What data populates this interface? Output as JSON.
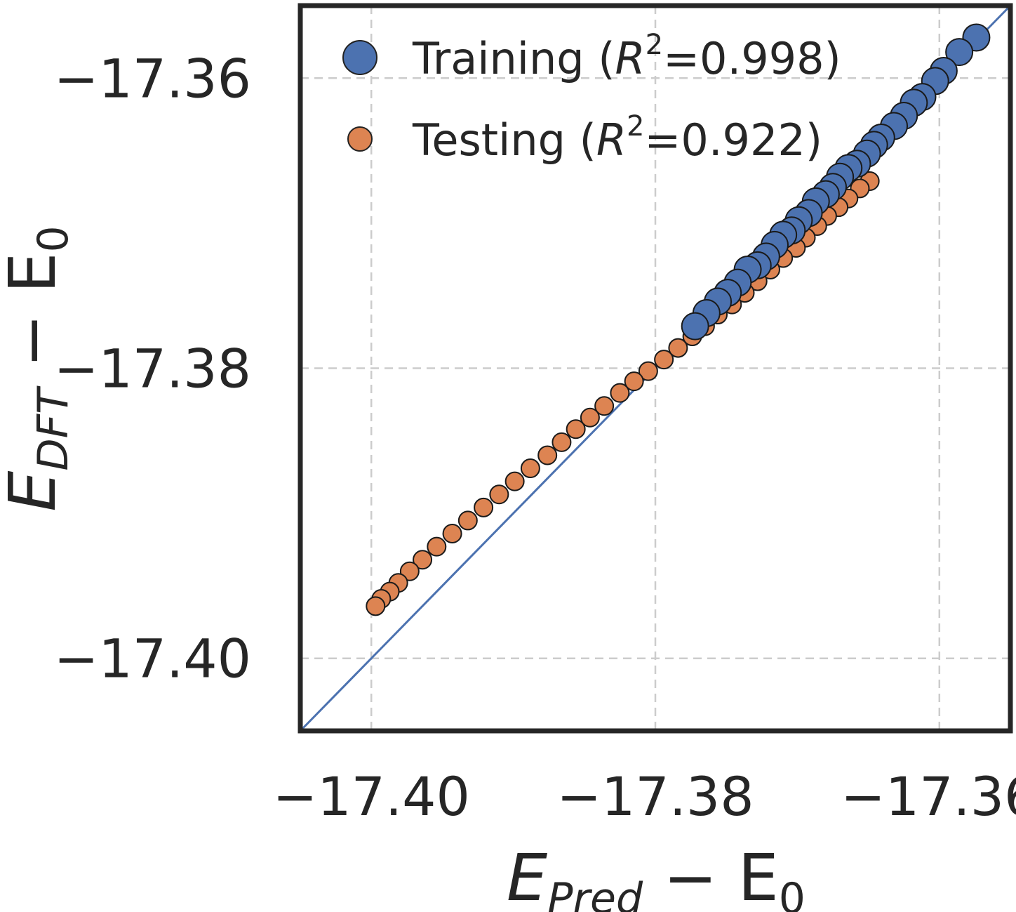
{
  "chart_data": {
    "type": "scatter",
    "title": "",
    "xlabel": {
      "main": "E",
      "sub": "Pred",
      "rest": " − E",
      "sub2": "0"
    },
    "ylabel": {
      "main": "E",
      "sub": "DFT",
      "rest": " − E",
      "sub2": "0"
    },
    "xlim": [
      -17.405,
      -17.355
    ],
    "ylim": [
      -17.405,
      -17.355
    ],
    "x_ticks": [
      -17.4,
      -17.38,
      -17.36
    ],
    "y_ticks": [
      -17.4,
      -17.38,
      -17.36
    ],
    "x_tick_labels": [
      "−17.40",
      "−17.38",
      "−17.36"
    ],
    "y_tick_labels": [
      "−17.40",
      "−17.38",
      "−17.36"
    ],
    "grid": true,
    "legend_position": "top-left",
    "reference_line": "y = x",
    "colors": {
      "training": "#4c72b0",
      "testing": "#dd8452",
      "reference": "#4c72b0",
      "frame": "#262626",
      "grid": "#cccccc"
    },
    "series": [
      {
        "name": "Training",
        "legend_label": "Training (",
        "r2_symbol": "R",
        "r2_exp": "2",
        "r2_value": "=0.998)",
        "x": [
          -17.3574,
          -17.3586,
          -17.3597,
          -17.3603,
          -17.3612,
          -17.3618,
          -17.3625,
          -17.3632,
          -17.3641,
          -17.3646,
          -17.3651,
          -17.3658,
          -17.3664,
          -17.367,
          -17.3675,
          -17.368,
          -17.3687,
          -17.3692,
          -17.3699,
          -17.3704,
          -17.371,
          -17.3716,
          -17.3722,
          -17.3728,
          -17.3735,
          -17.3742,
          -17.3749,
          -17.3756,
          -17.3764,
          -17.3772
        ],
        "y": [
          -17.3572,
          -17.3582,
          -17.3595,
          -17.3602,
          -17.3613,
          -17.3617,
          -17.3626,
          -17.3633,
          -17.3641,
          -17.3646,
          -17.3652,
          -17.3659,
          -17.3662,
          -17.3668,
          -17.3675,
          -17.368,
          -17.3685,
          -17.3693,
          -17.3698,
          -17.3705,
          -17.3708,
          -17.3715,
          -17.3723,
          -17.3729,
          -17.3732,
          -17.3741,
          -17.3748,
          -17.3754,
          -17.3762,
          -17.3771
        ]
      },
      {
        "name": "Testing",
        "legend_label": "Testing (",
        "r2_symbol": "R",
        "r2_exp": "2",
        "r2_value": "=0.922)",
        "x": [
          -17.3649,
          -17.3656,
          -17.3664,
          -17.3671,
          -17.3679,
          -17.3686,
          -17.3694,
          -17.3701,
          -17.371,
          -17.3719,
          -17.3728,
          -17.3737,
          -17.3746,
          -17.3756,
          -17.3765,
          -17.3774,
          -17.3784,
          -17.3794,
          -17.3805,
          -17.3815,
          -17.3825,
          -17.3836,
          -17.3846,
          -17.3856,
          -17.3866,
          -17.3876,
          -17.3888,
          -17.3899,
          -17.391,
          -17.3921,
          -17.3932,
          -17.3943,
          -17.3954,
          -17.3964,
          -17.3973,
          -17.3981,
          -17.3987,
          -17.3993,
          -17.3997
        ],
        "y": [
          -17.3671,
          -17.3676,
          -17.3683,
          -17.3689,
          -17.3695,
          -17.3702,
          -17.371,
          -17.3717,
          -17.3724,
          -17.3732,
          -17.374,
          -17.3748,
          -17.3756,
          -17.3763,
          -17.3771,
          -17.3778,
          -17.3786,
          -17.3794,
          -17.3802,
          -17.3809,
          -17.3817,
          -17.3826,
          -17.3834,
          -17.3842,
          -17.3851,
          -17.386,
          -17.3869,
          -17.3878,
          -17.3887,
          -17.3896,
          -17.3905,
          -17.3914,
          -17.3923,
          -17.3932,
          -17.394,
          -17.3948,
          -17.3954,
          -17.3959,
          -17.3964
        ]
      }
    ]
  }
}
